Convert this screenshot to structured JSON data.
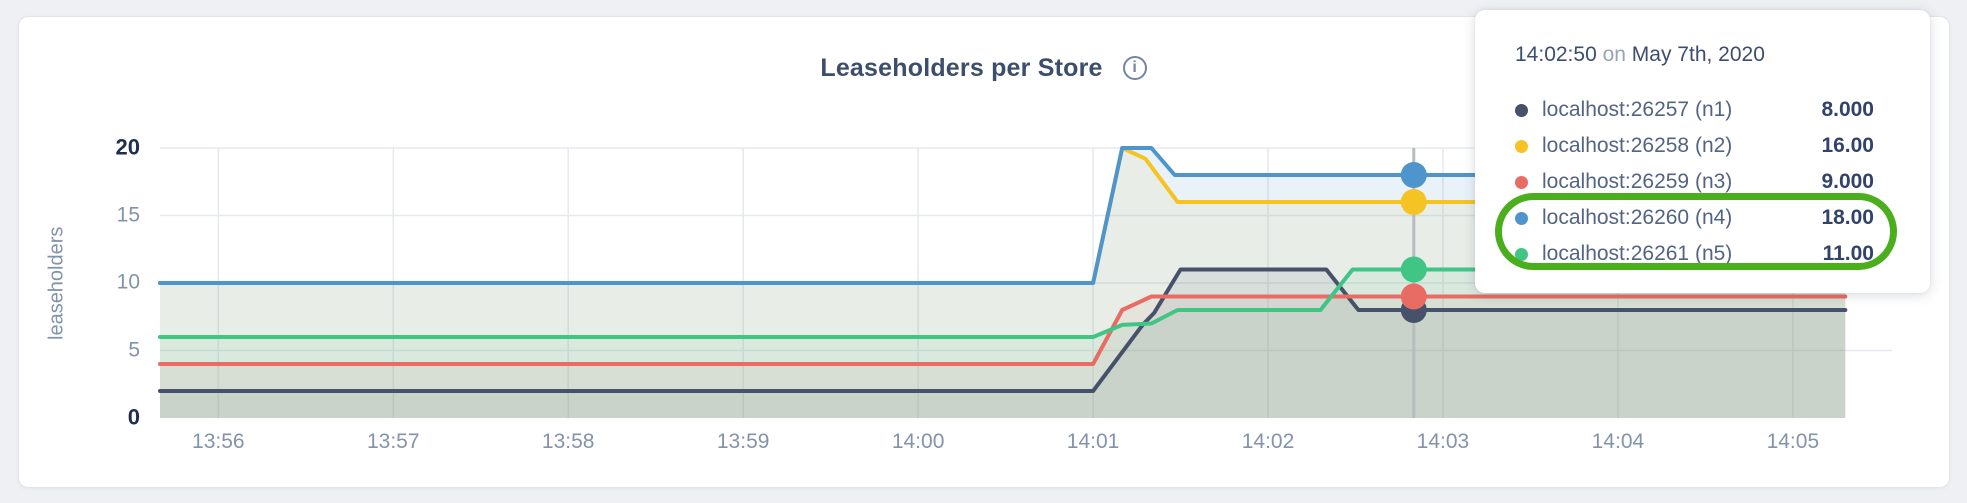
{
  "header": {
    "info_icon_glyph": "i"
  },
  "chart_data": {
    "type": "area",
    "title": "Leaseholders per Store",
    "xlabel": "",
    "ylabel": "leaseholders",
    "ylim": [
      0,
      20
    ],
    "y_ticks": [
      0,
      5,
      10,
      15,
      20
    ],
    "x_ticks": [
      "13:56",
      "13:57",
      "13:58",
      "13:59",
      "14:00",
      "14:01",
      "14:02",
      "14:03",
      "14:04",
      "14:05"
    ],
    "x_tick_seconds": [
      20,
      80,
      140,
      200,
      260,
      320,
      380,
      440,
      500,
      560
    ],
    "x_domain_seconds": [
      0,
      594
    ],
    "x_data_end_seconds": 578,
    "grid": true,
    "legend_position": "hover-tooltip",
    "hover_seconds": 430,
    "hover_time": "14:02:50",
    "series": [
      {
        "name": "localhost:26257 (n1)",
        "color": "#46526b",
        "fill": "rgba(70,82,107,0.10)",
        "points": [
          [
            0,
            2
          ],
          [
            320,
            2
          ],
          [
            337,
            6.9
          ],
          [
            341,
            7.8
          ],
          [
            350,
            11
          ],
          [
            400,
            11
          ],
          [
            411,
            8
          ],
          [
            578,
            8
          ]
        ],
        "hover_value": 8,
        "hover_label": "8.000"
      },
      {
        "name": "localhost:26258 (n2)",
        "color": "#f5c324",
        "fill": "rgba(245,195,36,0.09)",
        "points": [
          [
            0,
            10
          ],
          [
            320,
            10
          ],
          [
            330,
            20
          ],
          [
            338,
            19.2
          ],
          [
            349,
            16
          ],
          [
            578,
            16
          ]
        ],
        "hover_value": 16,
        "hover_label": "16.00"
      },
      {
        "name": "localhost:26259 (n3)",
        "color": "#e86c63",
        "fill": "rgba(232,108,99,0.09)",
        "points": [
          [
            0,
            4
          ],
          [
            320,
            4
          ],
          [
            330,
            8
          ],
          [
            340,
            9
          ],
          [
            578,
            9
          ]
        ],
        "hover_value": 9,
        "hover_label": "9.000"
      },
      {
        "name": "localhost:26260 (n4)",
        "color": "#4e95cd",
        "fill": "rgba(78,149,205,0.12)",
        "points": [
          [
            0,
            10
          ],
          [
            320,
            10
          ],
          [
            330,
            20
          ],
          [
            340,
            20
          ],
          [
            348,
            18
          ],
          [
            578,
            18
          ]
        ],
        "hover_value": 18,
        "hover_label": "18.00"
      },
      {
        "name": "localhost:26261 (n5)",
        "color": "#41c585",
        "fill": "rgba(65,197,133,0.09)",
        "points": [
          [
            0,
            6
          ],
          [
            320,
            6
          ],
          [
            330,
            6.9
          ],
          [
            340,
            7
          ],
          [
            349,
            8
          ],
          [
            398,
            8
          ],
          [
            409,
            11
          ],
          [
            578,
            11
          ]
        ],
        "hover_value": 11,
        "hover_label": "11.00"
      }
    ],
    "colors": {
      "gridline": "#e5e9ef",
      "crosshair": "#b9bcbe",
      "axis_tick": "#8493aa",
      "axis_tick_extreme": "#1e2e51"
    }
  },
  "tooltip": {
    "time": "14:02:50",
    "connector": "on",
    "date": "May 7th, 2020",
    "annotation": {
      "color": "#4bae1d",
      "highlighted_rows": [
        3,
        4
      ]
    }
  }
}
